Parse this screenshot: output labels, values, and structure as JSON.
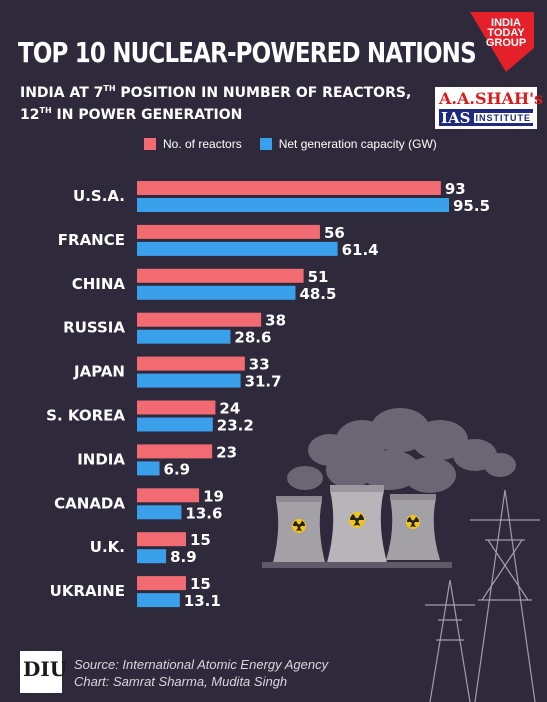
{
  "header": {
    "title": "TOP 10 NUCLEAR-POWERED NATIONS",
    "subtitle_line1_a": "INDIA AT 7",
    "subtitle_line1_sup": "TH",
    "subtitle_line1_b": " POSITION IN NUMBER OF REACTORS,",
    "subtitle_line2_a": "12",
    "subtitle_line2_sup": "TH",
    "subtitle_line2_b": " IN POWER GENERATION"
  },
  "logos": {
    "india_today": "INDIA TODAY GROUP",
    "shah_line1": "A.A.SHAH's",
    "shah_ias": "IAS",
    "shah_institute": "INSTITUTE",
    "diu": "DIU"
  },
  "colors": {
    "background": "#2e2a3b",
    "reactors": "#f26b72",
    "capacity": "#3aa0ec",
    "india_today_red": "#e4212b"
  },
  "chart_data": {
    "type": "bar",
    "orientation": "horizontal",
    "categories": [
      "U.S.A.",
      "FRANCE",
      "CHINA",
      "RUSSIA",
      "JAPAN",
      "S. KOREA",
      "INDIA",
      "CANADA",
      "U.K.",
      "UKRAINE"
    ],
    "series": [
      {
        "name": "No. of reactors",
        "values": [
          93,
          56,
          51,
          38,
          33,
          24,
          23,
          19,
          15,
          15
        ],
        "labels": [
          "93",
          "56",
          "51",
          "38",
          "33",
          "24",
          "23",
          "19",
          "15",
          "15"
        ]
      },
      {
        "name": "Net generation capacity (GW)",
        "values": [
          95.5,
          61.4,
          48.5,
          28.6,
          31.7,
          23.2,
          6.9,
          13.6,
          8.9,
          13.1
        ],
        "labels": [
          "95.5",
          "61.4",
          "48.5",
          "28.6",
          "31.7",
          "23.2",
          "6.9",
          "13.6",
          "8.9",
          "13.1"
        ]
      }
    ],
    "legend_position": "top",
    "grid": false
  },
  "footer": {
    "source": "Source: International Atomic Energy Agency",
    "credit": "Chart: Samrat Sharma, Mudita Singh"
  }
}
